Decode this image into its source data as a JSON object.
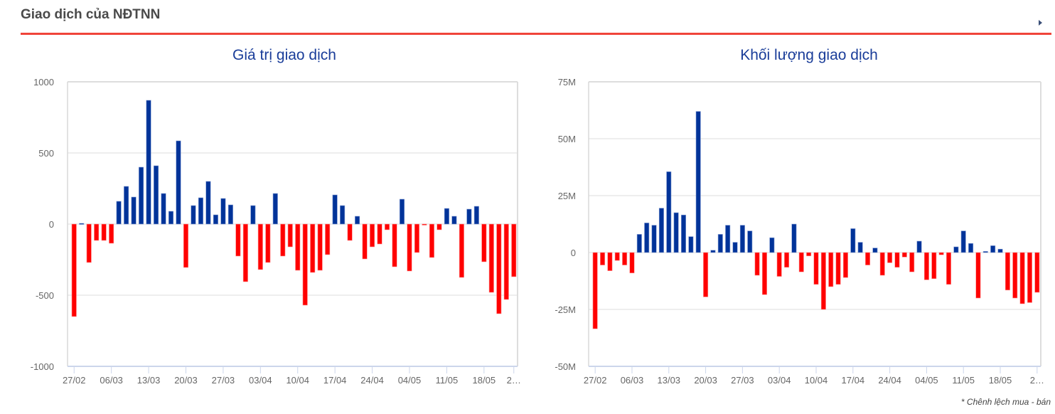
{
  "header": {
    "title": "Giao dịch của NĐTNN",
    "expand_icon": "caret-right-icon"
  },
  "note": "* Chênh lệch mua - bán",
  "colors": {
    "positive": "#003399",
    "negative": "#ff0000",
    "accent": "#f0443a",
    "title": "#1a3d99"
  },
  "chart_data": [
    {
      "type": "bar",
      "title": "Giá trị giao dịch",
      "xlabel": "",
      "ylabel": "",
      "ylim": [
        -1000,
        1000
      ],
      "yticks": [
        1000,
        500,
        0,
        -500,
        -1000
      ],
      "ytick_labels": [
        "1000",
        "500",
        "0",
        "-500",
        "-1000"
      ],
      "xtick_labels": [
        "27/02",
        "06/03",
        "13/03",
        "20/03",
        "27/03",
        "03/04",
        "10/04",
        "17/04",
        "24/04",
        "04/05",
        "11/05",
        "18/05",
        "2…"
      ],
      "xtick_index": [
        0,
        5,
        10,
        15,
        20,
        25,
        30,
        35,
        40,
        45,
        50,
        55,
        59
      ],
      "grid": true,
      "values": [
        -650,
        5,
        -270,
        -115,
        -115,
        -135,
        160,
        265,
        190,
        400,
        870,
        410,
        215,
        90,
        585,
        -305,
        130,
        185,
        300,
        65,
        180,
        135,
        -225,
        -405,
        130,
        -320,
        -270,
        215,
        -225,
        -160,
        -325,
        -570,
        -340,
        -325,
        -215,
        205,
        130,
        -115,
        55,
        -245,
        -160,
        -140,
        -40,
        -300,
        175,
        -330,
        -200,
        -5,
        -235,
        -40,
        110,
        55,
        -375,
        105,
        125,
        -265,
        -480,
        -630,
        -530,
        -370
      ]
    },
    {
      "type": "bar",
      "title": "Khối lượng giao dịch",
      "xlabel": "",
      "ylabel": "",
      "ylim": [
        -50,
        75
      ],
      "unit": "M",
      "yticks": [
        75,
        50,
        25,
        0,
        -25,
        -50
      ],
      "ytick_labels": [
        "75M",
        "50M",
        "25M",
        "0",
        "-25M",
        "-50M"
      ],
      "xtick_labels": [
        "27/02",
        "06/03",
        "13/03",
        "20/03",
        "27/03",
        "03/04",
        "10/04",
        "17/04",
        "24/04",
        "04/05",
        "11/05",
        "18/05",
        "2…"
      ],
      "xtick_index": [
        0,
        5,
        10,
        15,
        20,
        25,
        30,
        35,
        40,
        45,
        50,
        55,
        60
      ],
      "grid": true,
      "values": [
        -33.5,
        -5.5,
        -8,
        -3.5,
        -5.5,
        -9,
        8,
        13,
        12,
        19.5,
        35.5,
        17.5,
        16.5,
        7,
        62,
        -19.5,
        1,
        8,
        12,
        4.5,
        12,
        9.5,
        -10,
        -18.5,
        6.5,
        -10.5,
        -6.5,
        12.5,
        -8.5,
        -1.5,
        -14,
        -25,
        -15,
        -14,
        -11,
        10.5,
        4.5,
        -5.5,
        2,
        -10,
        -4.5,
        -6.5,
        -2,
        -8.5,
        5,
        -12,
        -11.5,
        -1,
        -14,
        2.5,
        9.5,
        4,
        -20,
        0.5,
        3,
        1.5,
        -16.5,
        -20,
        -22.5,
        -22,
        -17.5
      ]
    }
  ]
}
